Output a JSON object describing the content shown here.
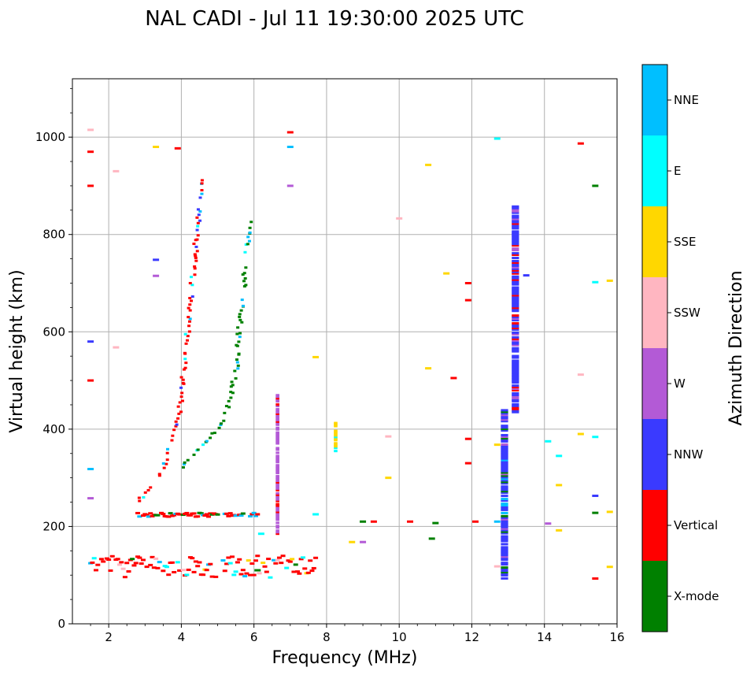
{
  "chart_data": {
    "type": "scatter",
    "title": "NAL CADI - Jul 11 19:30:00 2025 UTC",
    "xlabel": "Frequency (MHz)",
    "ylabel": "Virtual height (km)",
    "xlim": [
      1,
      16
    ],
    "ylim": [
      0,
      1120
    ],
    "xticks": [
      2,
      4,
      6,
      8,
      10,
      12,
      14,
      16
    ],
    "yticks": [
      0,
      200,
      400,
      600,
      800,
      1000
    ],
    "grid": true,
    "colorbar": {
      "title": "Azimuth Direction",
      "categories": [
        {
          "name": "X-mode",
          "color": "#008000"
        },
        {
          "name": "Vertical",
          "color": "#ff0000"
        },
        {
          "name": "NNW",
          "color": "#3a3aff"
        },
        {
          "name": "W",
          "color": "#b35ad6"
        },
        {
          "name": "SSW",
          "color": "#ffb6c1"
        },
        {
          "name": "SSE",
          "color": "#ffd700"
        },
        {
          "name": "E",
          "color": "#00ffff"
        },
        {
          "name": "NNE",
          "color": "#00bfff"
        }
      ]
    },
    "traces": [
      {
        "name": "E-layer low",
        "f": [
          1.5,
          7.7
        ],
        "h_range": [
          95,
          140
        ],
        "dir": [
          "X-mode",
          "Vertical",
          "SSW",
          "SSE",
          "E",
          "NNE"
        ],
        "dominant": "Vertical"
      },
      {
        "name": "Es-layer 225km",
        "f": [
          2.8,
          6.1
        ],
        "h_range": [
          220,
          228
        ],
        "dir": [
          "Vertical",
          "X-mode",
          "NNE"
        ],
        "dominant": "Vertical"
      },
      {
        "name": "F-layer O-trace",
        "points": [
          [
            2.8,
            250
          ],
          [
            3.2,
            280
          ],
          [
            3.5,
            320
          ],
          [
            3.8,
            380
          ],
          [
            4.0,
            460
          ],
          [
            4.1,
            540
          ],
          [
            4.2,
            620
          ],
          [
            4.3,
            700
          ],
          [
            4.4,
            780
          ],
          [
            4.5,
            860
          ],
          [
            4.6,
            920
          ]
        ],
        "dir": [
          "Vertical",
          "NNE",
          "NNW",
          "E"
        ],
        "dominant": "Vertical"
      },
      {
        "name": "F-layer X-trace",
        "points": [
          [
            4.0,
            320
          ],
          [
            4.5,
            360
          ],
          [
            5.0,
            400
          ],
          [
            5.3,
            450
          ],
          [
            5.5,
            520
          ],
          [
            5.6,
            600
          ],
          [
            5.7,
            680
          ],
          [
            5.8,
            760
          ],
          [
            5.9,
            830
          ]
        ],
        "dir": [
          "X-mode",
          "E",
          "NNE"
        ],
        "dominant": "X-mode"
      },
      {
        "name": "W column 6.6MHz",
        "f": [
          6.6,
          6.7
        ],
        "h_range": [
          185,
          470
        ],
        "dir": [
          "W",
          "Vertical"
        ],
        "dominant": "W"
      },
      {
        "name": "Column 12.9MHz",
        "f": [
          12.8,
          13.0
        ],
        "h_range": [
          90,
          440
        ],
        "dir": [
          "NNW",
          "NNE",
          "X-mode",
          "W"
        ],
        "dominant": "NNW"
      },
      {
        "name": "Column 13.2MHz",
        "f": [
          13.1,
          13.3
        ],
        "h_range": [
          435,
          860
        ],
        "dir": [
          "NNW",
          "Vertical",
          "W"
        ],
        "dominant": "NNW"
      },
      {
        "name": "Column 8.2MHz",
        "f": [
          8.2,
          8.3
        ],
        "h_range": [
          355,
          415
        ],
        "dir": [
          "SSE",
          "E"
        ],
        "dominant": "SSE"
      }
    ]
  }
}
